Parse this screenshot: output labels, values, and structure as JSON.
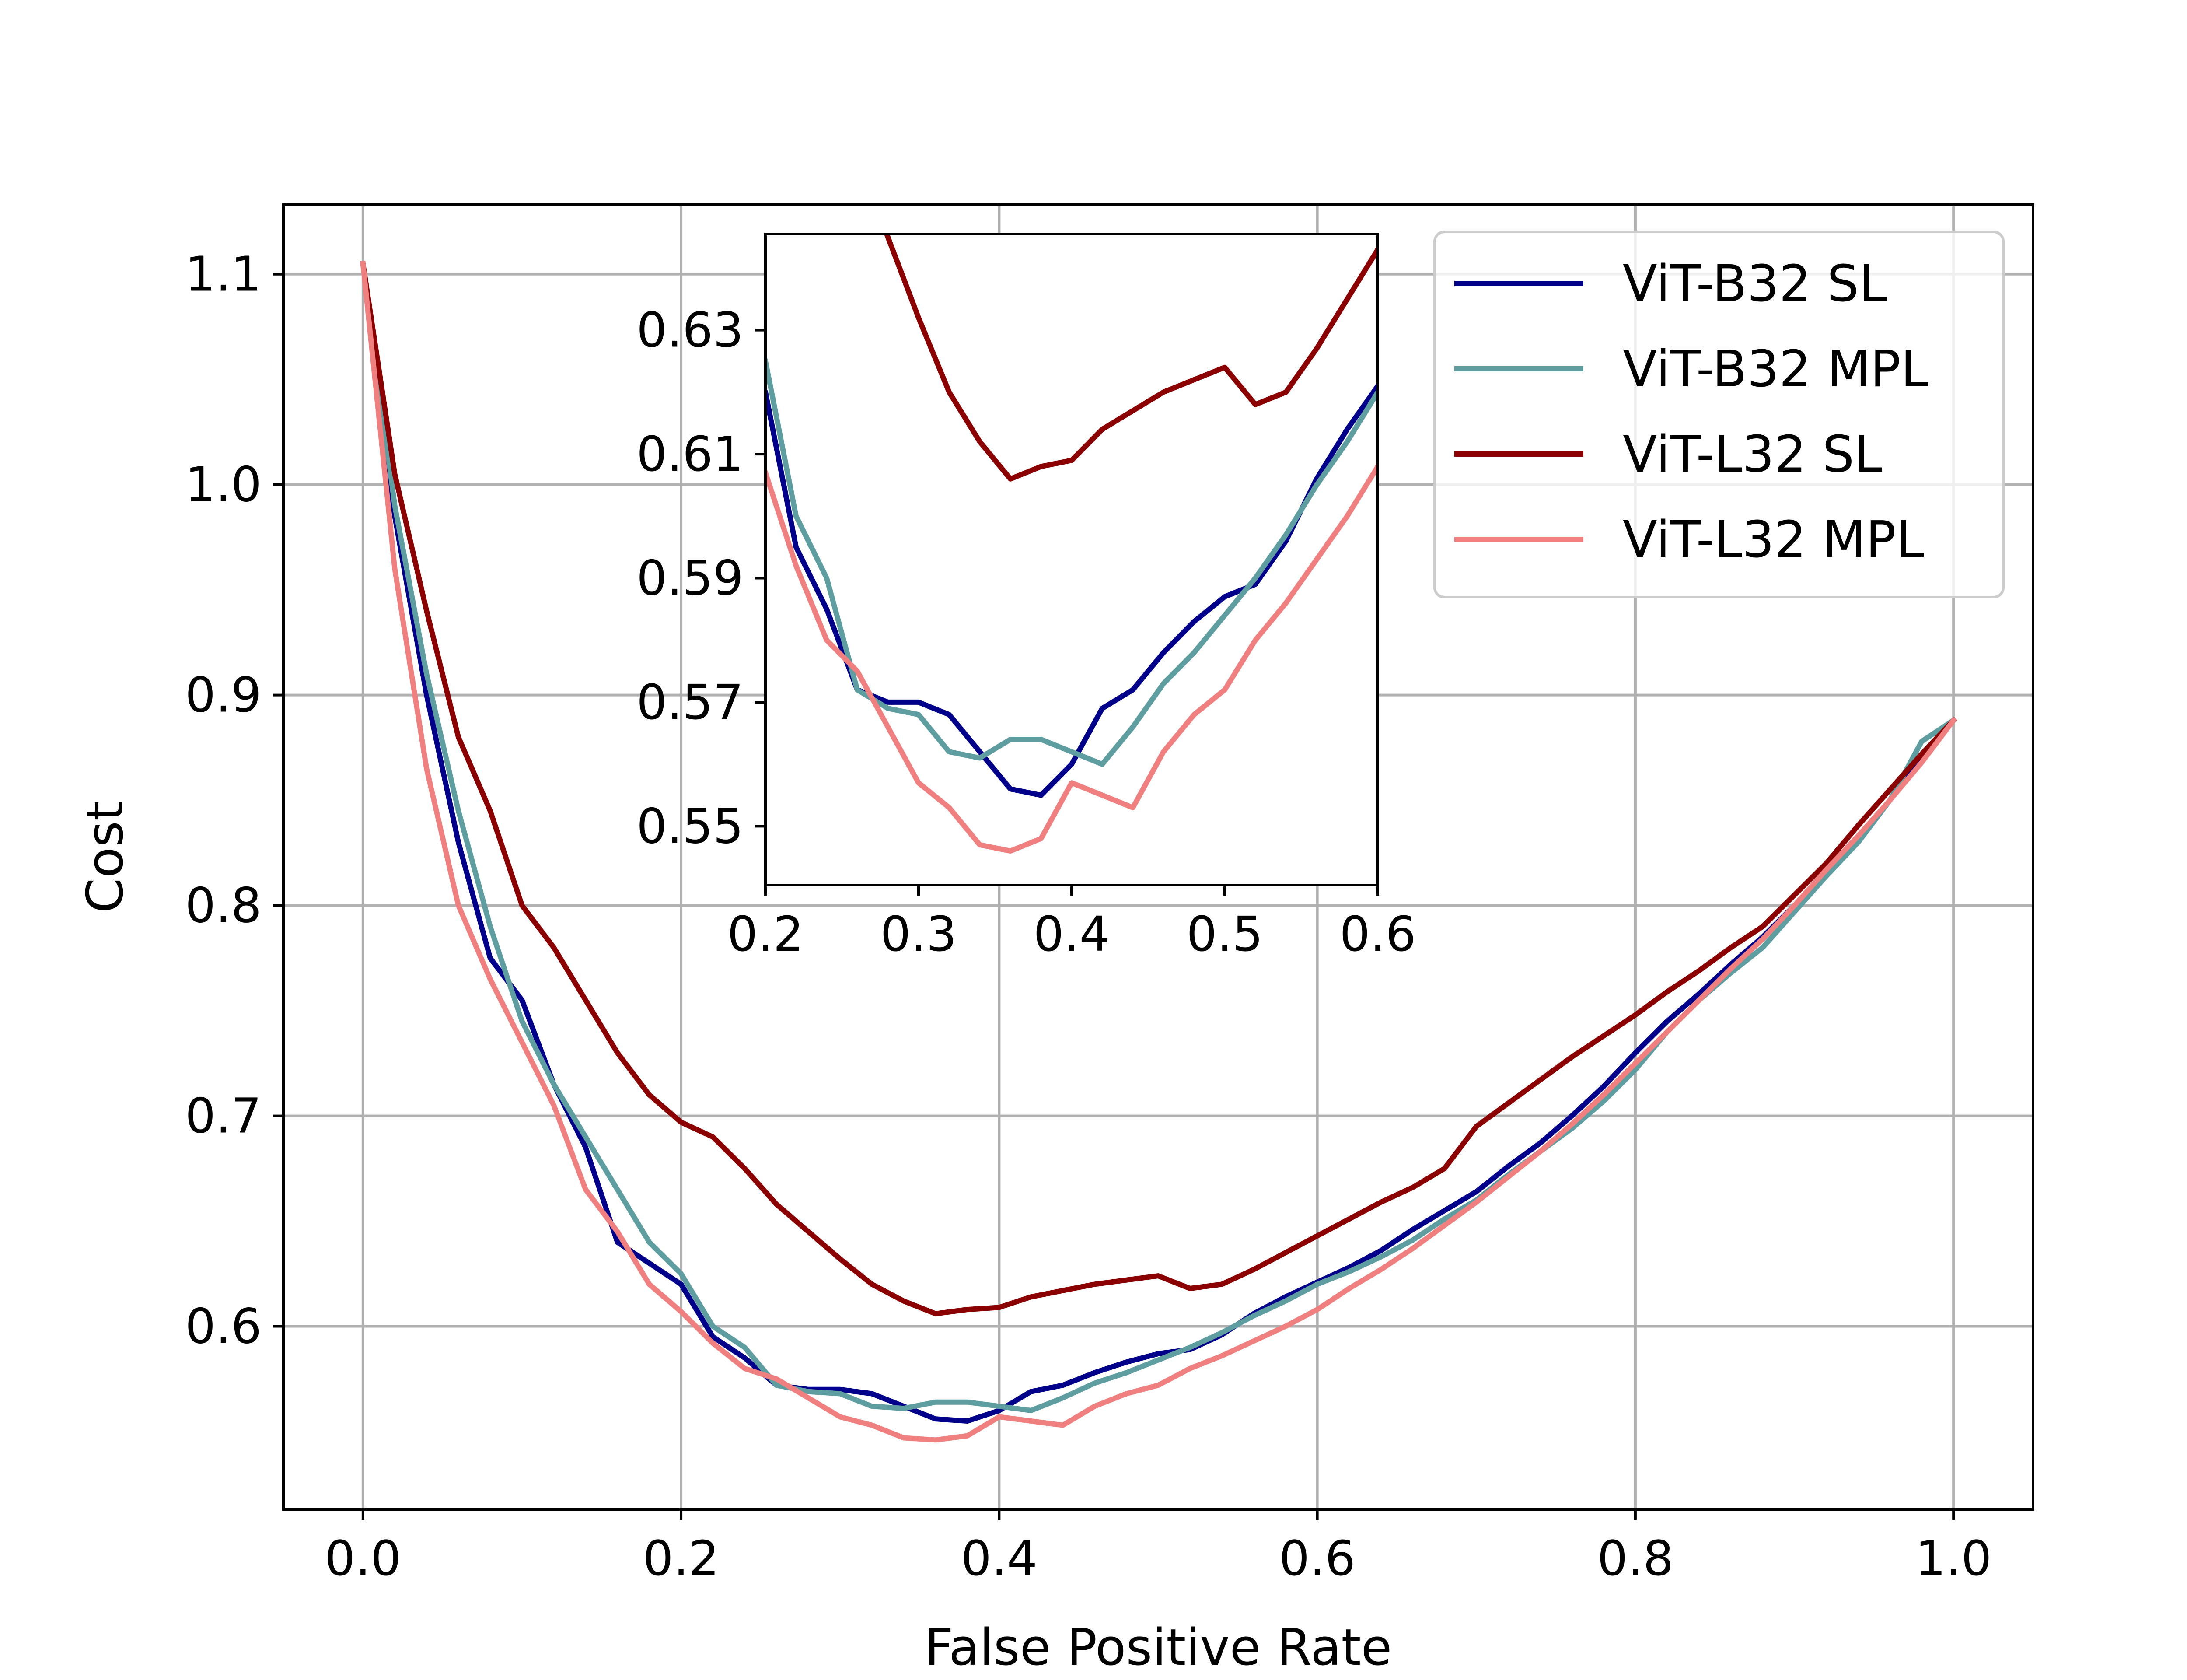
{
  "chart_data": {
    "type": "line",
    "xlabel": "False Positive Rate",
    "ylabel": "Cost",
    "xlim": [
      -0.05,
      1.05
    ],
    "ylim": [
      0.513,
      1.133
    ],
    "xticks": [
      "0.0",
      "0.2",
      "0.4",
      "0.6",
      "0.8",
      "1.0"
    ],
    "yticks": [
      "0.6",
      "0.7",
      "0.8",
      "0.9",
      "1.0",
      "1.1"
    ],
    "grid": true,
    "legend_position": "top-right",
    "series": [
      {
        "name": "ViT-B32 SL",
        "color": "#00008b",
        "x": [
          0.0,
          0.02,
          0.04,
          0.06,
          0.08,
          0.1,
          0.12,
          0.14,
          0.16,
          0.18,
          0.2,
          0.22,
          0.24,
          0.26,
          0.28,
          0.3,
          0.32,
          0.34,
          0.36,
          0.38,
          0.4,
          0.42,
          0.44,
          0.46,
          0.48,
          0.5,
          0.52,
          0.54,
          0.56,
          0.58,
          0.6,
          0.62,
          0.64,
          0.66,
          0.68,
          0.7,
          0.72,
          0.74,
          0.76,
          0.78,
          0.8,
          0.82,
          0.84,
          0.86,
          0.88,
          0.9,
          0.92,
          0.94,
          0.96,
          0.98,
          1.0
        ],
        "y": [
          1.105,
          0.985,
          0.9,
          0.83,
          0.775,
          0.755,
          0.715,
          0.685,
          0.64,
          0.63,
          0.62,
          0.595,
          0.585,
          0.572,
          0.57,
          0.57,
          0.568,
          0.562,
          0.556,
          0.555,
          0.56,
          0.569,
          0.572,
          0.578,
          0.583,
          0.587,
          0.589,
          0.596,
          0.606,
          0.614,
          0.621,
          0.628,
          0.636,
          0.646,
          0.655,
          0.664,
          0.676,
          0.687,
          0.7,
          0.714,
          0.73,
          0.745,
          0.758,
          0.772,
          0.785,
          0.8,
          0.815,
          0.83,
          0.85,
          0.87,
          0.888
        ]
      },
      {
        "name": "ViT-B32 MPL",
        "color": "#5f9ea0",
        "x": [
          0.0,
          0.02,
          0.04,
          0.06,
          0.08,
          0.1,
          0.12,
          0.14,
          0.16,
          0.18,
          0.2,
          0.22,
          0.24,
          0.26,
          0.28,
          0.3,
          0.32,
          0.34,
          0.36,
          0.38,
          0.4,
          0.42,
          0.44,
          0.46,
          0.48,
          0.5,
          0.52,
          0.54,
          0.56,
          0.58,
          0.6,
          0.62,
          0.64,
          0.66,
          0.68,
          0.7,
          0.72,
          0.74,
          0.76,
          0.78,
          0.8,
          0.82,
          0.84,
          0.86,
          0.88,
          0.9,
          0.92,
          0.94,
          0.96,
          0.98,
          1.0
        ],
        "y": [
          1.105,
          0.99,
          0.91,
          0.845,
          0.79,
          0.745,
          0.715,
          0.69,
          0.665,
          0.64,
          0.625,
          0.6,
          0.59,
          0.572,
          0.569,
          0.568,
          0.562,
          0.561,
          0.564,
          0.564,
          0.562,
          0.56,
          0.566,
          0.573,
          0.578,
          0.584,
          0.59,
          0.597,
          0.605,
          0.612,
          0.62,
          0.626,
          0.633,
          0.641,
          0.651,
          0.66,
          0.672,
          0.683,
          0.694,
          0.707,
          0.722,
          0.74,
          0.755,
          0.768,
          0.78,
          0.797,
          0.814,
          0.83,
          0.85,
          0.878,
          0.888
        ]
      },
      {
        "name": "ViT-L32 SL",
        "color": "#8b0000",
        "x": [
          0.0,
          0.02,
          0.04,
          0.06,
          0.08,
          0.1,
          0.12,
          0.14,
          0.16,
          0.18,
          0.2,
          0.22,
          0.24,
          0.26,
          0.28,
          0.3,
          0.32,
          0.34,
          0.36,
          0.38,
          0.4,
          0.42,
          0.44,
          0.46,
          0.48,
          0.5,
          0.52,
          0.54,
          0.56,
          0.58,
          0.6,
          0.62,
          0.64,
          0.66,
          0.68,
          0.7,
          0.72,
          0.74,
          0.76,
          0.78,
          0.8,
          0.82,
          0.84,
          0.86,
          0.88,
          0.9,
          0.92,
          0.94,
          0.96,
          0.98,
          1.0
        ],
        "y": [
          1.105,
          1.005,
          0.94,
          0.88,
          0.845,
          0.8,
          0.78,
          0.755,
          0.73,
          0.71,
          0.697,
          0.69,
          0.675,
          0.658,
          0.645,
          0.632,
          0.62,
          0.612,
          0.606,
          0.608,
          0.609,
          0.614,
          0.617,
          0.62,
          0.622,
          0.624,
          0.618,
          0.62,
          0.627,
          0.635,
          0.643,
          0.651,
          0.659,
          0.666,
          0.675,
          0.695,
          0.706,
          0.717,
          0.728,
          0.738,
          0.748,
          0.759,
          0.769,
          0.78,
          0.79,
          0.805,
          0.82,
          0.838,
          0.855,
          0.872,
          0.888
        ]
      },
      {
        "name": "ViT-L32 MPL",
        "color": "#f08080",
        "x": [
          0.0,
          0.02,
          0.04,
          0.06,
          0.08,
          0.1,
          0.12,
          0.14,
          0.16,
          0.18,
          0.2,
          0.22,
          0.24,
          0.26,
          0.28,
          0.3,
          0.32,
          0.34,
          0.36,
          0.38,
          0.4,
          0.42,
          0.44,
          0.46,
          0.48,
          0.5,
          0.52,
          0.54,
          0.56,
          0.58,
          0.6,
          0.62,
          0.64,
          0.66,
          0.68,
          0.7,
          0.72,
          0.74,
          0.76,
          0.78,
          0.8,
          0.82,
          0.84,
          0.86,
          0.88,
          0.9,
          0.92,
          0.94,
          0.96,
          0.98,
          1.0
        ],
        "y": [
          1.105,
          0.96,
          0.865,
          0.8,
          0.765,
          0.735,
          0.705,
          0.665,
          0.645,
          0.62,
          0.607,
          0.592,
          0.58,
          0.575,
          0.566,
          0.557,
          0.553,
          0.547,
          0.546,
          0.548,
          0.557,
          0.555,
          0.553,
          0.562,
          0.568,
          0.572,
          0.58,
          0.586,
          0.593,
          0.6,
          0.608,
          0.618,
          0.627,
          0.637,
          0.648,
          0.659,
          0.671,
          0.683,
          0.696,
          0.71,
          0.725,
          0.74,
          0.755,
          0.77,
          0.784,
          0.8,
          0.817,
          0.833,
          0.85,
          0.868,
          0.888
        ]
      }
    ],
    "inset": {
      "xlim": [
        0.2,
        0.6
      ],
      "ylim": [
        0.5405,
        0.6455
      ],
      "xticks": [
        "0.2",
        "0.3",
        "0.4",
        "0.5",
        "0.6"
      ],
      "yticks": [
        "0.55",
        "0.57",
        "0.59",
        "0.61",
        "0.63"
      ],
      "grid": false
    }
  }
}
